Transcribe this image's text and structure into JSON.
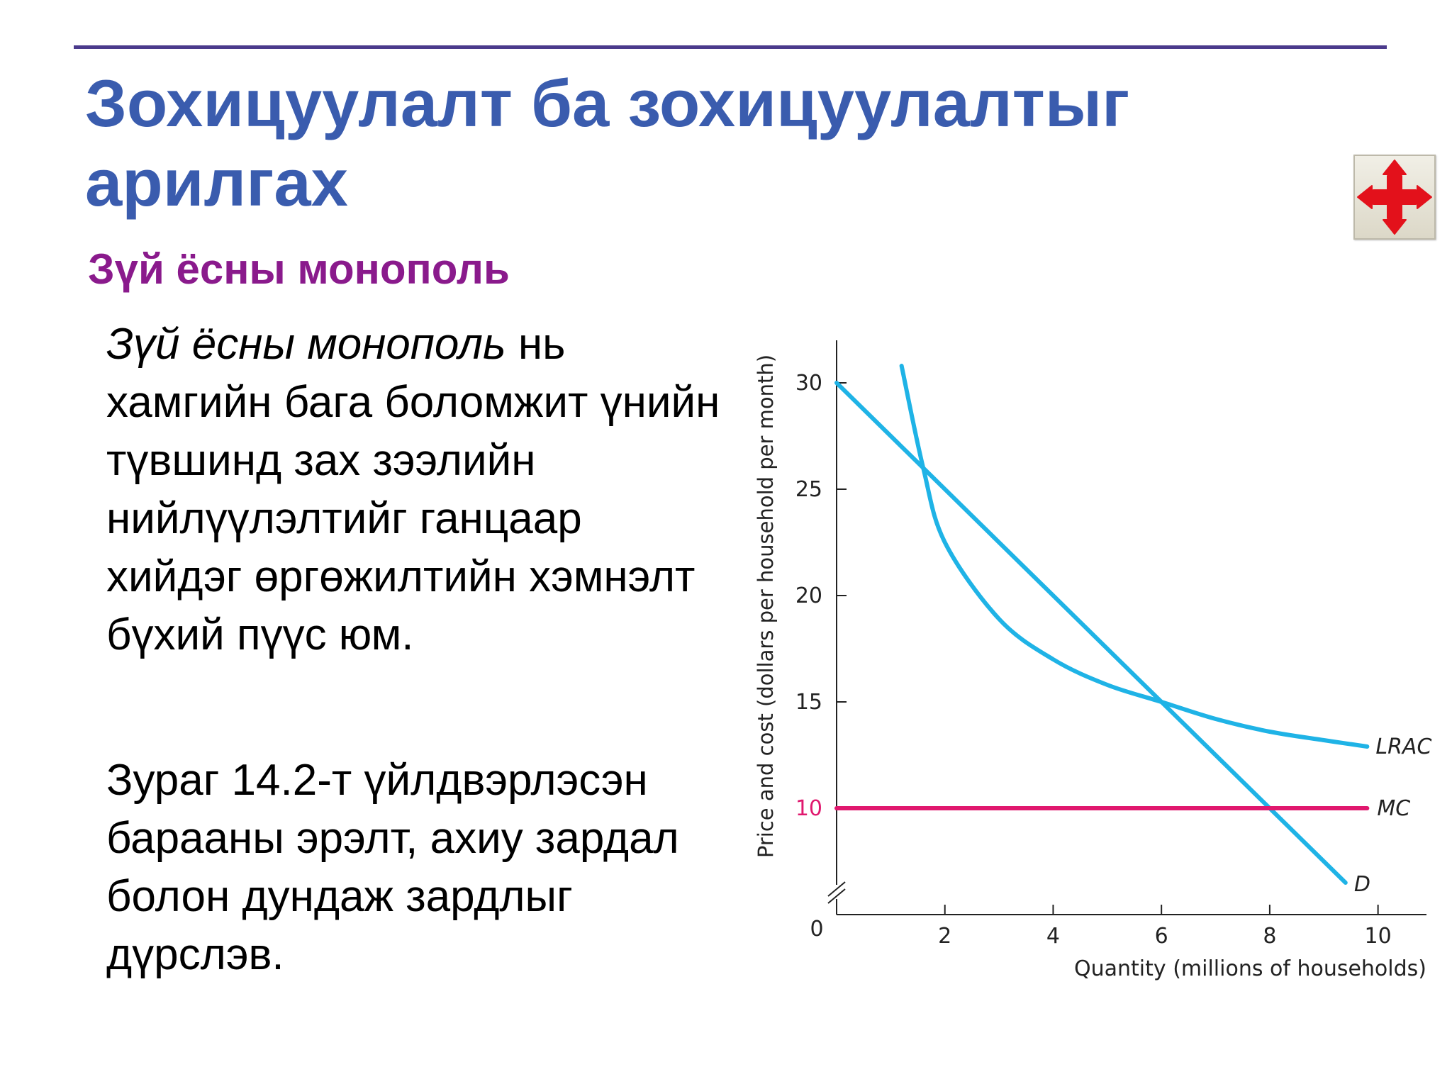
{
  "slide": {
    "title": "Зохицуулалт ба зохицуулалтыг арилгах",
    "subtitle": "Зүй ёсны монополь",
    "paragraph1_em": "Зүй ёсны монополь",
    "paragraph1_rest": " нь хамгийн бага боломжит үнийн түвшинд зах зээлийн нийлүүлэлтийг ганцаар хийдэг өргөжилтийн хэмнэлт бүхий пүүс юм.",
    "paragraph2": "Зураг 14.2-т үйлдвэрлэсэн барааны эрэлт, ахиу зардал болон дундаж зардлыг дүрслэв.",
    "nav_icon": "move-arrows-icon",
    "colors": {
      "title": "#3a5cae",
      "subtitle": "#8a1a8c",
      "rule": "#4b3a8c",
      "curve": "#1fb3e6",
      "mc": "#e0186e"
    }
  },
  "chart_data": {
    "type": "line",
    "xlabel": "Quantity (millions of households)",
    "ylabel": "Price and cost (dollars per household per month)",
    "xlim": [
      0,
      11
    ],
    "ylim": [
      5,
      32
    ],
    "x_ticks": [
      "2",
      "4",
      "6",
      "8",
      "10"
    ],
    "y_ticks": [
      "10",
      "15",
      "20",
      "25",
      "30"
    ],
    "origin_label": "0",
    "y_axis_break": true,
    "series": [
      {
        "name": "D",
        "values": [
          [
            0,
            30
          ],
          [
            1.6,
            26
          ],
          [
            6,
            15
          ],
          [
            8,
            10
          ],
          [
            9.4,
            6.5
          ]
        ]
      },
      {
        "name": "LRAC",
        "values": [
          [
            1.2,
            30.8
          ],
          [
            1.6,
            26
          ],
          [
            2,
            22.5
          ],
          [
            3,
            18.9
          ],
          [
            4,
            17
          ],
          [
            5,
            15.8
          ],
          [
            6,
            15
          ],
          [
            7,
            14.2
          ],
          [
            8,
            13.6
          ],
          [
            9,
            13.2
          ],
          [
            9.8,
            12.9
          ]
        ]
      },
      {
        "name": "MC",
        "values": [
          [
            0,
            10
          ],
          [
            9.8,
            10
          ]
        ]
      }
    ]
  }
}
